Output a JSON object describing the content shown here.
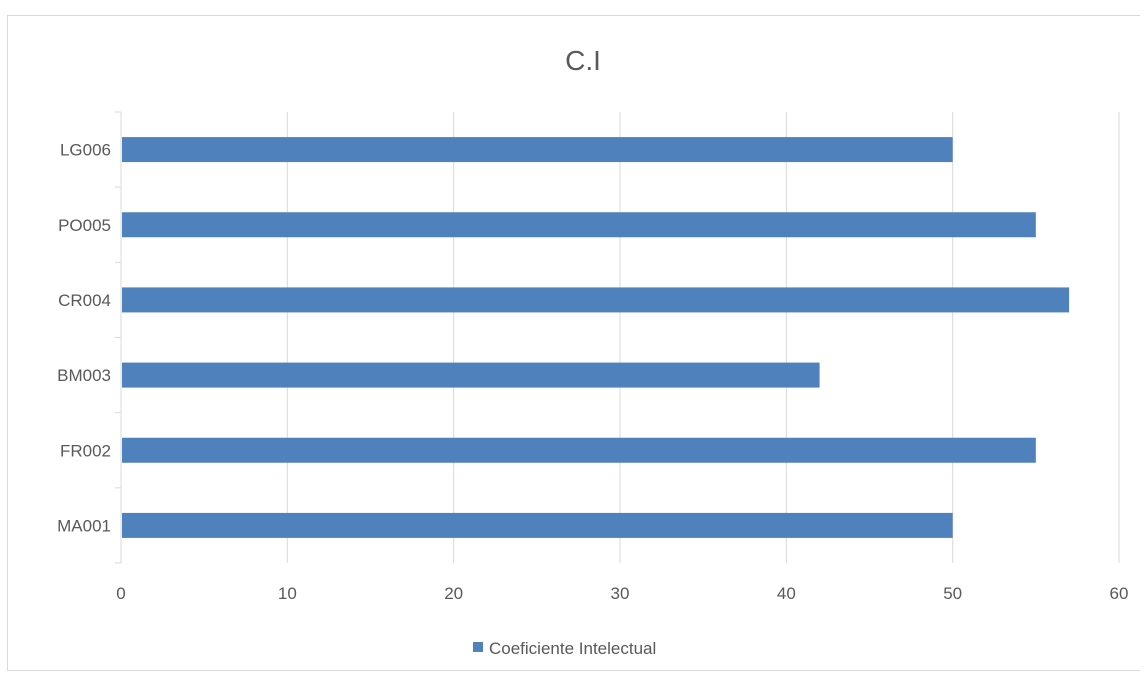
{
  "chart_data": {
    "type": "bar",
    "orientation": "horizontal",
    "title": "C.I",
    "categories": [
      "MA001",
      "FR002",
      "BM003",
      "CR004",
      "PO005",
      "LG006"
    ],
    "series": [
      {
        "name": "Coeficiente Intelectual",
        "values": [
          50,
          55,
          42,
          57,
          55,
          50
        ],
        "color": "#4F81BD"
      }
    ],
    "xlim": [
      0,
      60
    ],
    "xticks": [
      0,
      10,
      20,
      30,
      40,
      50,
      60
    ],
    "xlabel": "",
    "ylabel": "",
    "grid": "vertical",
    "legend_position": "bottom"
  }
}
